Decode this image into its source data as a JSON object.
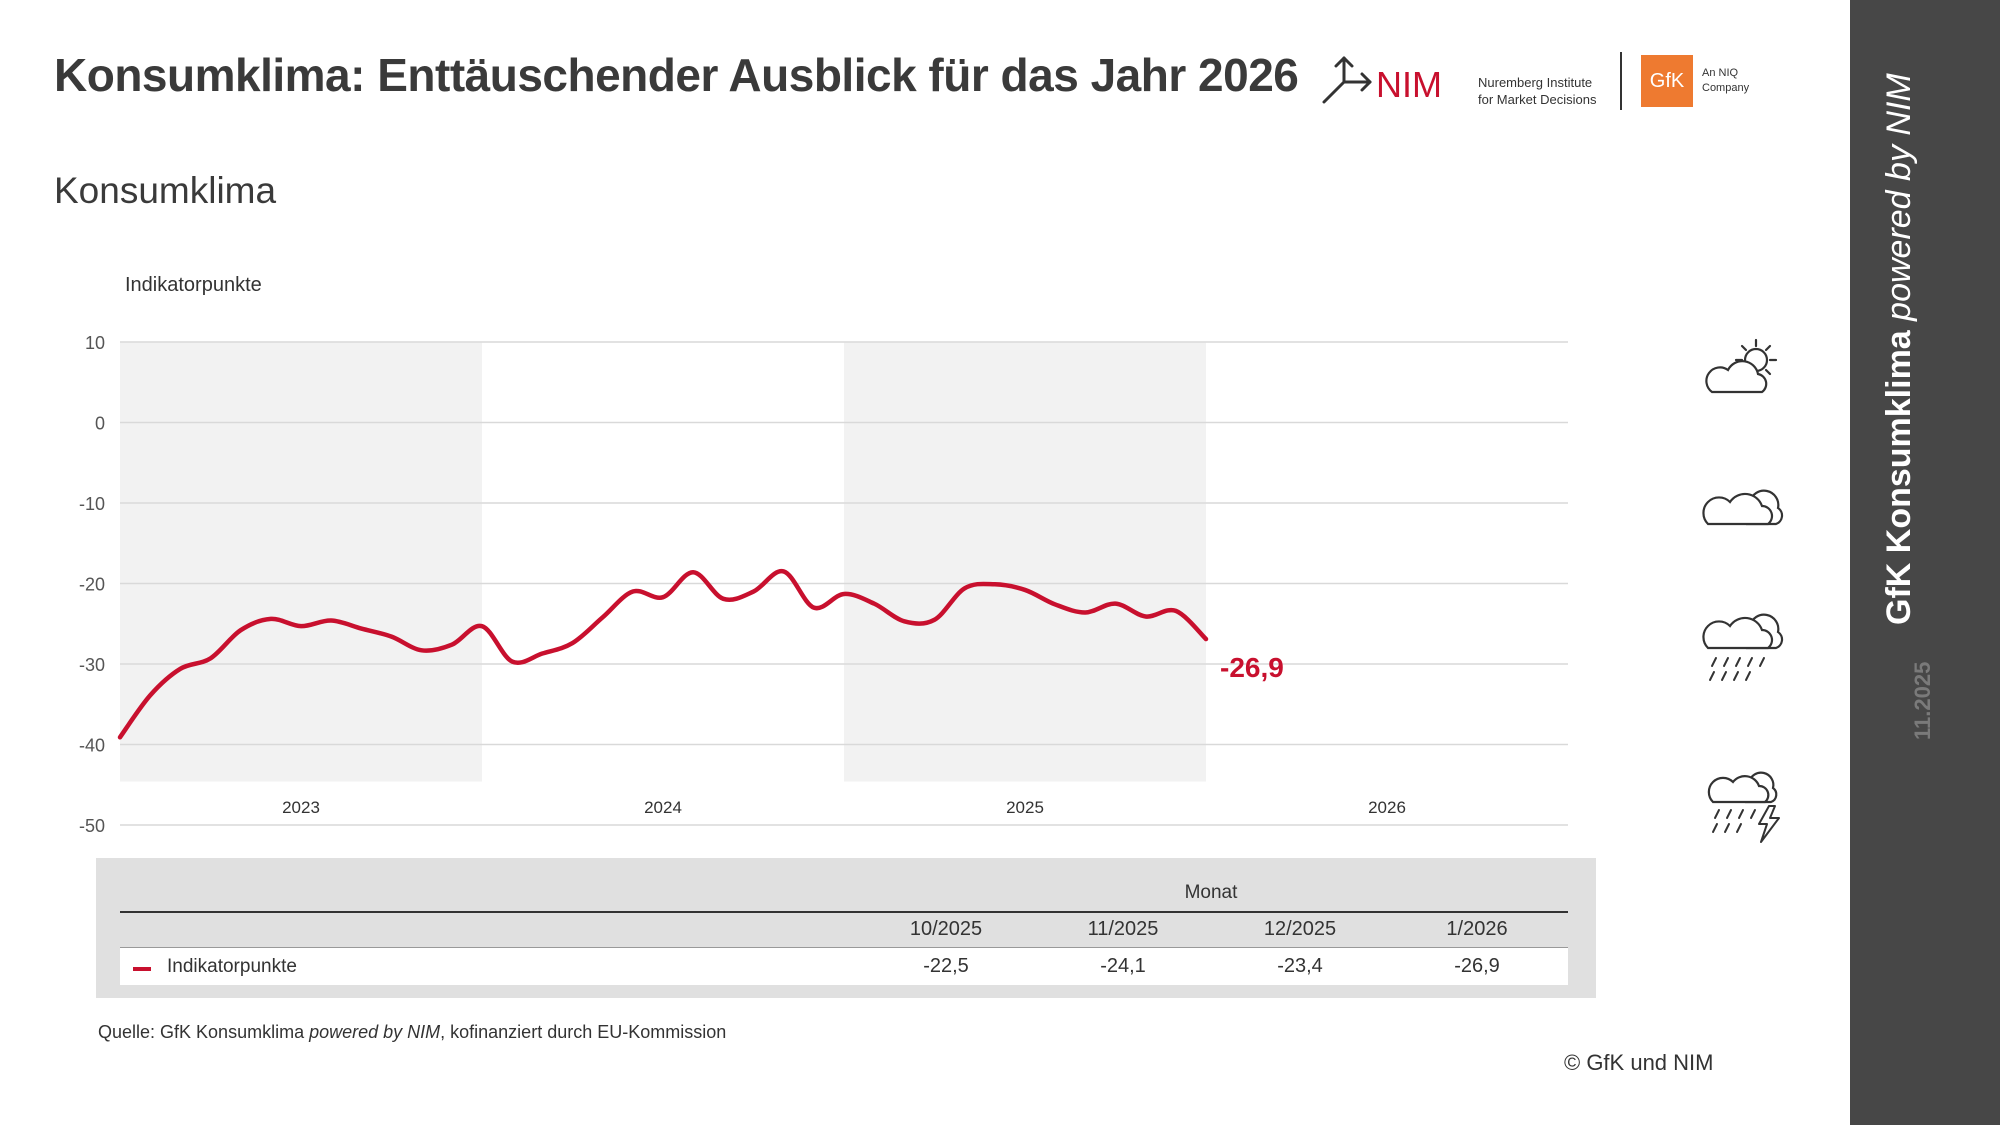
{
  "header": {
    "title": "Konsumklima: Enttäuschender Ausblick für das Jahr 2026",
    "subtitle": "Konsumklima",
    "nim_logo_text": "NIM",
    "nim_tagline_1": "Nuremberg Institute",
    "nim_tagline_2": "for Market Decisions",
    "gfk_logo_text": "GfK",
    "gfk_tagline_1": "An NIQ",
    "gfk_tagline_2": "Company"
  },
  "sidebar": {
    "title_bold": "GfK Konsumklima",
    "title_italic": "powered by NIM",
    "date": "11.2025"
  },
  "weather_icons": [
    "sun-cloud-icon",
    "cloud-icon",
    "rain-cloud-icon",
    "storm-cloud-icon"
  ],
  "chart_data": {
    "type": "line",
    "ylabel": "Indikatorpunkte",
    "ylim": [
      -50,
      10
    ],
    "yticks": [
      10,
      0,
      -10,
      -20,
      -30,
      -40,
      -50
    ],
    "year_labels": [
      "2023",
      "2024",
      "2025",
      "2026"
    ],
    "x": [
      "1/2023",
      "2/2023",
      "3/2023",
      "4/2023",
      "5/2023",
      "6/2023",
      "7/2023",
      "8/2023",
      "9/2023",
      "10/2023",
      "11/2023",
      "12/2023",
      "1/2024",
      "2/2024",
      "3/2024",
      "4/2024",
      "5/2024",
      "6/2024",
      "7/2024",
      "8/2024",
      "9/2024",
      "10/2024",
      "11/2024",
      "12/2024",
      "1/2025",
      "2/2025",
      "3/2025",
      "4/2025",
      "5/2025",
      "6/2025",
      "7/2025",
      "8/2025",
      "9/2025",
      "10/2025",
      "11/2025",
      "12/2025",
      "1/2026"
    ],
    "series": [
      {
        "name": "Indikatorpunkte",
        "color": "#c8102e",
        "values": [
          -39.1,
          -33.9,
          -30.6,
          -29.3,
          -25.8,
          -24.4,
          -25.3,
          -24.6,
          -25.6,
          -26.6,
          -28.3,
          -27.6,
          -25.3,
          -29.7,
          -28.7,
          -27.4,
          -24.2,
          -21.0,
          -21.7,
          -18.6,
          -21.9,
          -21.0,
          -18.5,
          -23.0,
          -21.3,
          -22.5,
          -24.7,
          -24.5,
          -20.6,
          -20.1,
          -20.8,
          -22.6,
          -23.6,
          -22.5,
          -24.1,
          -23.4,
          -26.9
        ]
      }
    ],
    "last_value_label": "-26,9",
    "grid": true,
    "shaded_years": [
      "2023",
      "2025"
    ]
  },
  "table": {
    "header": "Monat",
    "columns": [
      "10/2025",
      "11/2025",
      "12/2025",
      "1/2026"
    ],
    "row_label": "Indikatorpunkte",
    "values": [
      "-22,5",
      "-24,1",
      "-23,4",
      "-26,9"
    ]
  },
  "footer": {
    "source_prefix": "Quelle: GfK Konsumklima ",
    "source_italic": "powered by NIM",
    "source_suffix": ", kofinanziert durch EU-Kommission",
    "copyright": "© GfK und NIM"
  }
}
